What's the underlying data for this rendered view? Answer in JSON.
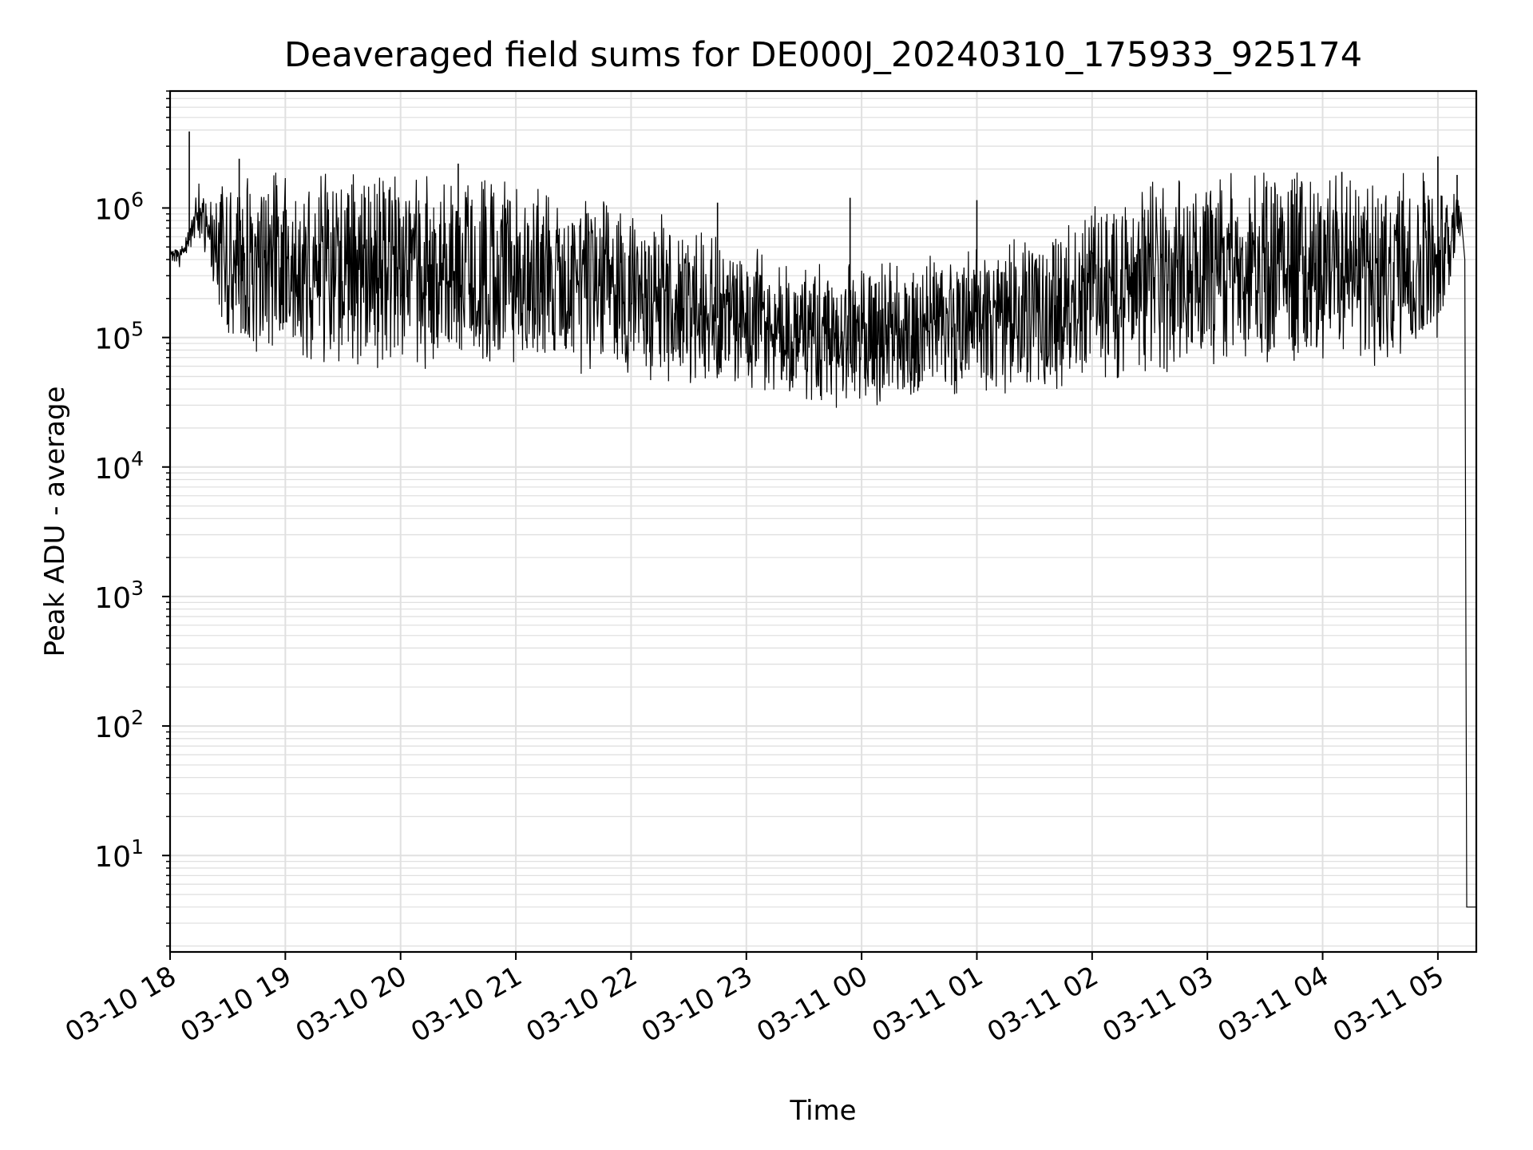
{
  "chart_data": {
    "type": "line",
    "title": "Deaveraged field sums for DE000J_20240310_175933_925174",
    "xlabel": "Time",
    "ylabel": "Peak ADU - average",
    "yscale": "log",
    "ylim": [
      1.8,
      8000000
    ],
    "xlim": [
      "2024-03-10 18:00",
      "2024-03-11 05:20"
    ],
    "grid": "on (major and minor, light grey)",
    "legend": "none",
    "line_color": "#000000",
    "grid_color": "#e0e0e0",
    "x_ticks": [
      {
        "t": "2024-03-10 18:00",
        "label": "03-10 18"
      },
      {
        "t": "2024-03-10 19:00",
        "label": "03-10 19"
      },
      {
        "t": "2024-03-10 20:00",
        "label": "03-10 20"
      },
      {
        "t": "2024-03-10 21:00",
        "label": "03-10 21"
      },
      {
        "t": "2024-03-10 22:00",
        "label": "03-10 22"
      },
      {
        "t": "2024-03-10 23:00",
        "label": "03-10 23"
      },
      {
        "t": "2024-03-11 00:00",
        "label": "03-11 00"
      },
      {
        "t": "2024-03-11 01:00",
        "label": "03-11 01"
      },
      {
        "t": "2024-03-11 02:00",
        "label": "03-11 02"
      },
      {
        "t": "2024-03-11 03:00",
        "label": "03-11 03"
      },
      {
        "t": "2024-03-11 04:00",
        "label": "03-11 04"
      },
      {
        "t": "2024-03-11 05:00",
        "label": "03-11 05"
      }
    ],
    "y_ticks": [
      {
        "value": 10,
        "base": "10",
        "exp": "1"
      },
      {
        "value": 100,
        "base": "10",
        "exp": "2"
      },
      {
        "value": 1000,
        "base": "10",
        "exp": "3"
      },
      {
        "value": 10000,
        "base": "10",
        "exp": "4"
      },
      {
        "value": 100000,
        "base": "10",
        "exp": "5"
      },
      {
        "value": 1000000,
        "base": "10",
        "exp": "6"
      }
    ],
    "series": [
      {
        "color": "#000000",
        "envelope": {
          "x": [
            "2024-03-10 18:00",
            "2024-03-10 18:05",
            "2024-03-10 18:10",
            "2024-03-10 18:15",
            "2024-03-10 18:20",
            "2024-03-10 18:25",
            "2024-03-10 18:30",
            "2024-03-10 18:40",
            "2024-03-10 18:50",
            "2024-03-10 19:00",
            "2024-03-10 19:15",
            "2024-03-10 19:30",
            "2024-03-10 19:45",
            "2024-03-10 20:00",
            "2024-03-10 20:15",
            "2024-03-10 20:30",
            "2024-03-10 20:45",
            "2024-03-10 21:00",
            "2024-03-10 21:15",
            "2024-03-10 21:30",
            "2024-03-10 21:45",
            "2024-03-10 22:00",
            "2024-03-10 22:15",
            "2024-03-10 22:30",
            "2024-03-10 22:45",
            "2024-03-10 23:00",
            "2024-03-10 23:15",
            "2024-03-10 23:30",
            "2024-03-10 23:45",
            "2024-03-11 00:00",
            "2024-03-11 00:15",
            "2024-03-11 00:30",
            "2024-03-11 00:45",
            "2024-03-11 01:00",
            "2024-03-11 01:15",
            "2024-03-11 01:30",
            "2024-03-11 01:45",
            "2024-03-11 02:00",
            "2024-03-11 02:15",
            "2024-03-11 02:30",
            "2024-03-11 02:45",
            "2024-03-11 03:00",
            "2024-03-11 03:15",
            "2024-03-11 03:30",
            "2024-03-11 03:45",
            "2024-03-11 04:00",
            "2024-03-11 04:15",
            "2024-03-11 04:30",
            "2024-03-11 04:45",
            "2024-03-11 05:00",
            "2024-03-11 05:10",
            "2024-03-11 05:12"
          ],
          "upper": [
            500000,
            480000,
            700000,
            1200000,
            1100000,
            1200000,
            1300000,
            1400000,
            1400000,
            1450000,
            1400000,
            1400000,
            1400000,
            1350000,
            1350000,
            1300000,
            1250000,
            1200000,
            1100000,
            1000000,
            900000,
            800000,
            700000,
            600000,
            500000,
            400000,
            350000,
            300000,
            280000,
            280000,
            300000,
            320000,
            350000,
            380000,
            420000,
            500000,
            650000,
            800000,
            1000000,
            1200000,
            1300000,
            1400000,
            1450000,
            1450000,
            1450000,
            1450000,
            1450000,
            1450000,
            1450000,
            1400000,
            1300000,
            1000000
          ],
          "lower": [
            350000,
            330000,
            450000,
            600000,
            350000,
            130000,
            80000,
            60000,
            60000,
            60000,
            60000,
            58000,
            57000,
            58000,
            57000,
            57000,
            56000,
            56000,
            55000,
            52000,
            50000,
            46000,
            42000,
            40000,
            40000,
            40000,
            38000,
            34000,
            28000,
            26000,
            30000,
            33000,
            36000,
            38000,
            35000,
            33000,
            36000,
            42000,
            48000,
            52000,
            55000,
            56000,
            55000,
            55000,
            55000,
            56000,
            56000,
            58000,
            60000,
            90000,
            400000,
            600000
          ]
        },
        "spikes": [
          {
            "t": "2024-03-10 18:10",
            "value": 3900000
          },
          {
            "t": "2024-03-10 18:36",
            "value": 2400000
          },
          {
            "t": "2024-03-10 20:30",
            "value": 2200000
          },
          {
            "t": "2024-03-10 22:45",
            "value": 1100000
          },
          {
            "t": "2024-03-10 23:54",
            "value": 1200000
          },
          {
            "t": "2024-03-11 01:00",
            "value": 1150000
          },
          {
            "t": "2024-03-11 04:10",
            "value": 1900000
          },
          {
            "t": "2024-03-11 05:00",
            "value": 2500000
          },
          {
            "t": "2024-03-11 05:10",
            "value": 1800000
          }
        ],
        "tail": [
          {
            "t": "2024-03-11 05:12",
            "value": 900000
          },
          {
            "t": "2024-03-11 05:14",
            "value": 400000
          },
          {
            "t": "2024-03-11 05:15",
            "value": 4
          },
          {
            "t": "2024-03-11 05:20",
            "value": 4
          }
        ]
      }
    ]
  }
}
